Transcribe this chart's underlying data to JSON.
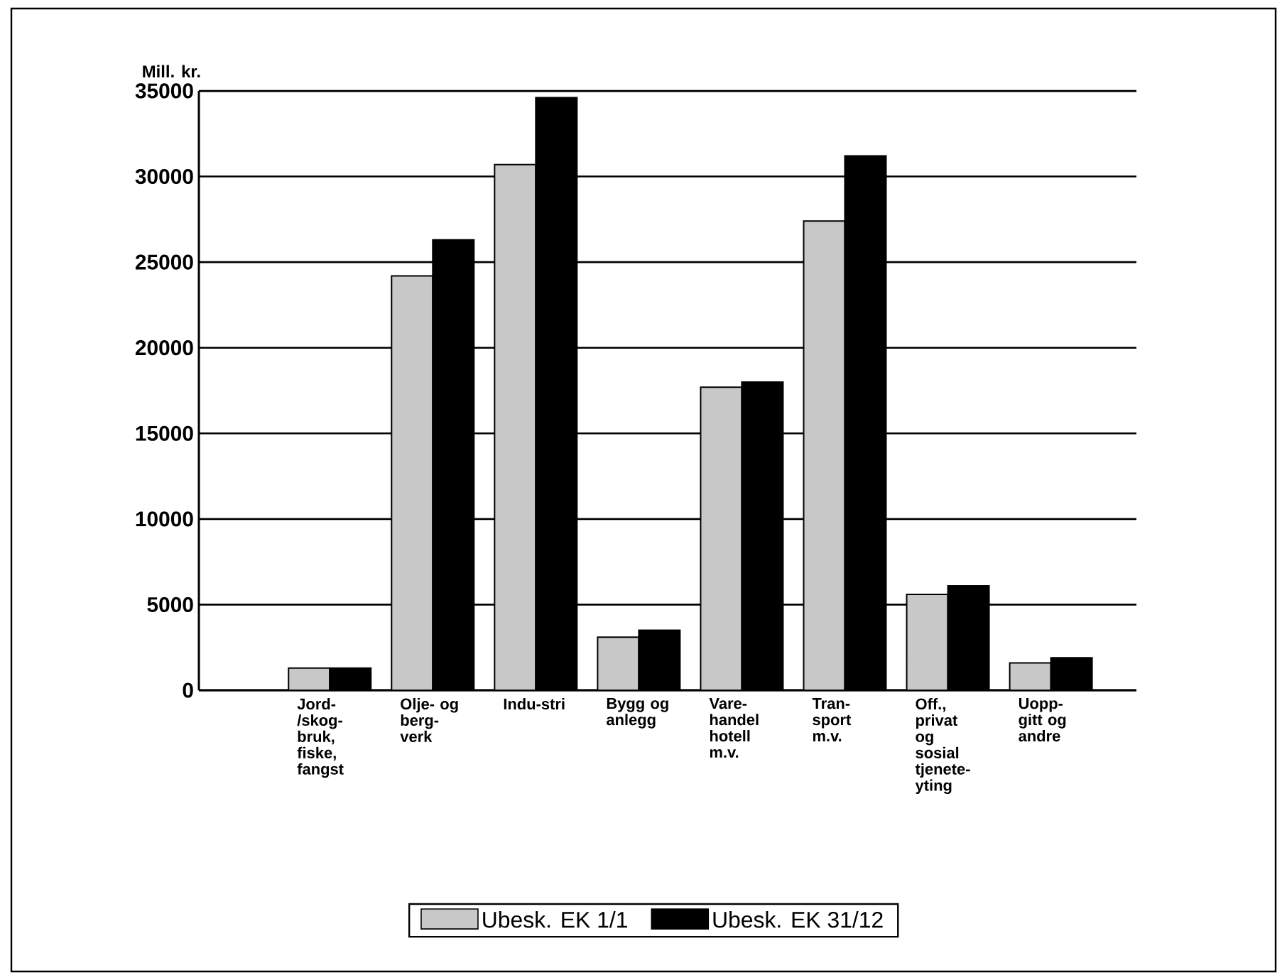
{
  "chart_data": {
    "type": "bar",
    "ylabel": "Mill. kr.",
    "categories": [
      "Jord-/skog-bruk, fiske, fangst",
      "Olje- og berg-verk",
      "Indu-stri",
      "Bygg og anlegg",
      "Vare-handel hotell m.v.",
      "Tran-sport m.v.",
      "Off., privat og sosial tjenete-yting",
      "Uopp-gitt og andre"
    ],
    "series": [
      {
        "name": "Ubesk. EK 1/1",
        "color": "#c8c8c8",
        "values": [
          1300,
          24200,
          30700,
          3100,
          17700,
          27400,
          5600,
          1600
        ]
      },
      {
        "name": "Ubesk. EK 31/12",
        "color": "#000000",
        "values": [
          1300,
          26300,
          34600,
          3500,
          18000,
          31200,
          6100,
          1900
        ]
      }
    ],
    "ylim": [
      0,
      35000
    ],
    "yticks": [
      0,
      5000,
      10000,
      15000,
      20000,
      25000,
      30000,
      35000
    ],
    "grid": "y",
    "legend": "bottom"
  }
}
